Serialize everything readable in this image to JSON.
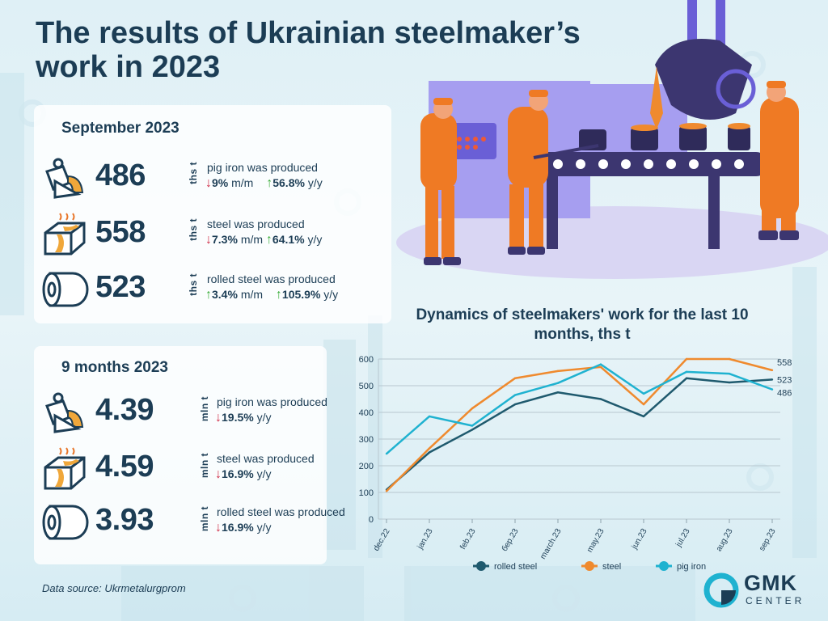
{
  "title": "The results of Ukrainian steelmaker’s work in 2023",
  "september": {
    "heading": "September 2023",
    "rows": [
      {
        "value": "486",
        "unit": "ths t",
        "label": "pig iron was produced",
        "mm": "9%",
        "mm_suffix": "m/m",
        "yy": "56.8%",
        "yy_suffix": "y/y"
      },
      {
        "value": "558",
        "unit": "ths t",
        "label": "steel was produced",
        "mm": "7.3%",
        "mm_suffix": "m/m",
        "yy": "64.1%",
        "yy_suffix": "y/y"
      },
      {
        "value": "523",
        "unit": "ths t",
        "label": "rolled steel was produced",
        "mm": "3.4%",
        "mm_suffix": "m/m",
        "yy": "105.9%",
        "yy_suffix": "y/y"
      }
    ]
  },
  "nine_months": {
    "heading": "9 months 2023",
    "rows": [
      {
        "value": "4.39",
        "unit": "mln t",
        "label": "pig iron was produced",
        "yy": "19.5%",
        "yy_suffix": "y/y"
      },
      {
        "value": "4.59",
        "unit": "mln t",
        "label": "steel was produced",
        "yy": "16.9%",
        "yy_suffix": "y/y"
      },
      {
        "value": "3.93",
        "unit": "mln t",
        "label": "rolled steel was produced",
        "yy": "16.9%",
        "yy_suffix": "y/y"
      }
    ]
  },
  "source": "Data source: Ukrmetalurgprom",
  "logo": {
    "name": "GMK",
    "sub": "CENTER"
  },
  "chart_data": {
    "type": "line",
    "title": "Dynamics of steelmakers' work for the last 10 months, ths t",
    "categories": [
      "dec.22",
      "jan.23",
      "feb.23",
      "бер.23",
      "march.23",
      "may.23",
      "jun.23",
      "jul.23",
      "aug.23",
      "sep.23"
    ],
    "ylim": [
      0,
      600
    ],
    "yticks": [
      0,
      100,
      200,
      300,
      400,
      500,
      600
    ],
    "grid": true,
    "legend_position": "bottom",
    "series": [
      {
        "name": "rolled steel",
        "color": "#1f5a6e",
        "values": [
          110,
          250,
          335,
          430,
          475,
          450,
          385,
          528,
          512,
          523
        ],
        "end_label": "523"
      },
      {
        "name": "steel",
        "color": "#ef8a2e",
        "values": [
          105,
          265,
          415,
          528,
          555,
          570,
          430,
          600,
          600,
          558
        ],
        "end_label": "558"
      },
      {
        "name": "pig iron",
        "color": "#1fb2d0",
        "values": [
          245,
          385,
          350,
          465,
          510,
          580,
          470,
          552,
          545,
          486
        ],
        "end_label": "486"
      }
    ]
  }
}
